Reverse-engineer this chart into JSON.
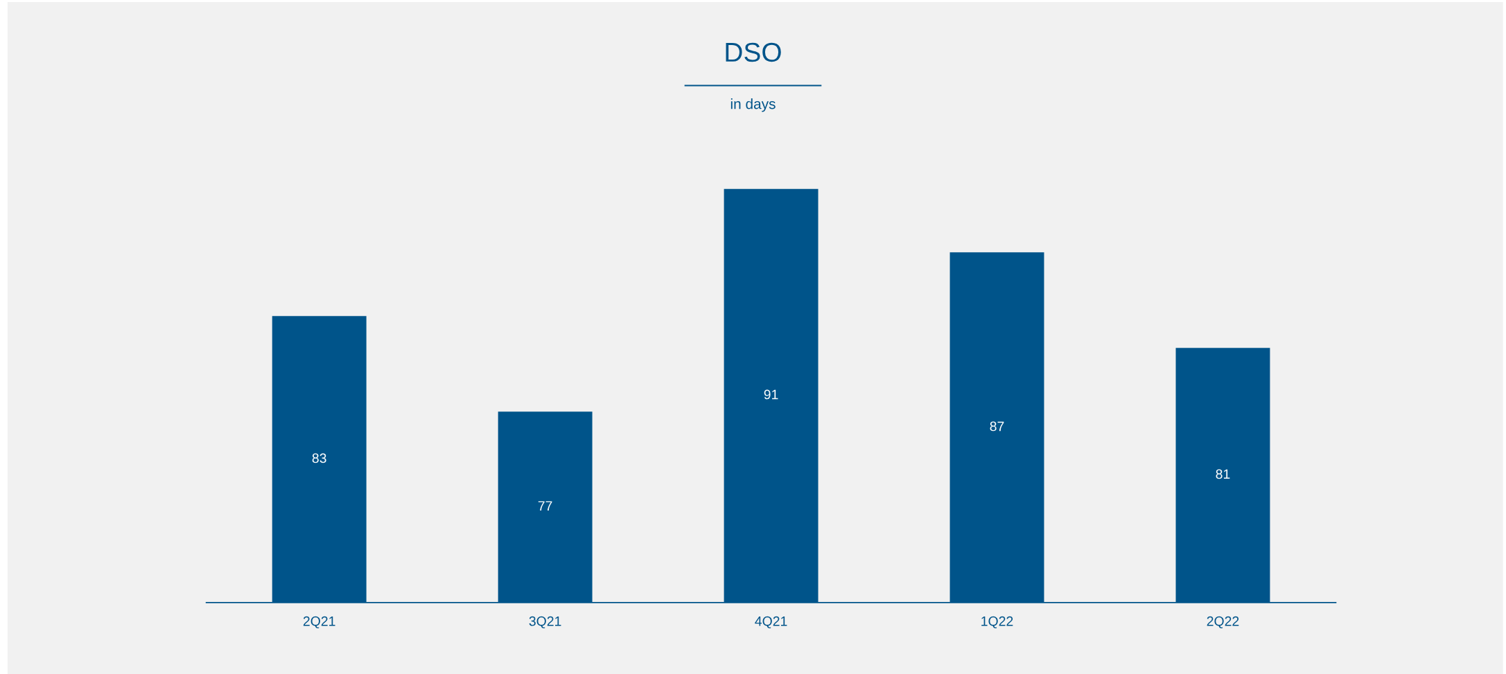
{
  "chart_data": {
    "type": "bar",
    "title": "DSO",
    "subtitle": "in days",
    "categories": [
      "2Q21",
      "3Q21",
      "4Q21",
      "1Q22",
      "2Q22"
    ],
    "values": [
      83,
      77,
      91,
      87,
      81
    ],
    "color": "#00548a",
    "ylim": [
      65,
      91
    ],
    "data_labels": true
  }
}
